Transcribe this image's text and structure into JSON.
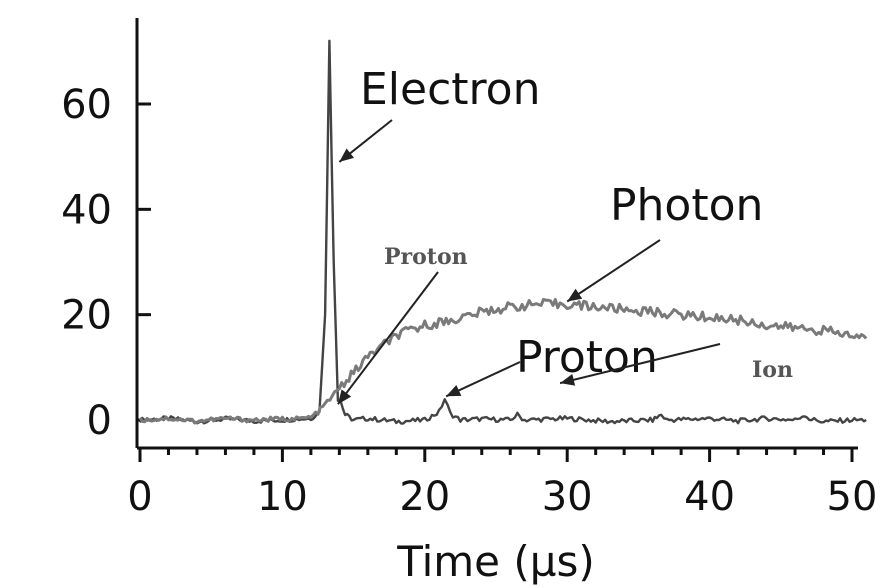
{
  "chart_data": {
    "type": "line",
    "xlabel": "Time (µs)",
    "ylabel": "",
    "title": "",
    "xlim": [
      0,
      51
    ],
    "ylim": [
      -3,
      78
    ],
    "xticks": [
      0,
      10,
      20,
      30,
      40,
      50
    ],
    "yticks": [
      0,
      20,
      40,
      60
    ],
    "xtick_labels": [
      "0",
      "10",
      "20",
      "30",
      "40",
      "50"
    ],
    "ytick_labels": [
      "0",
      "20",
      "40",
      "60"
    ],
    "grid": false,
    "colors": {
      "electron": "#444444",
      "photon": "#7a7a7a",
      "axis": "#111111"
    },
    "series": [
      {
        "key": "electron",
        "x": [
          0,
          2,
          4,
          6,
          8,
          10,
          11,
          12,
          12.6,
          13.0,
          13.3,
          13.6,
          13.9,
          14.1,
          14.4,
          15,
          16,
          18,
          20,
          21.0,
          21.4,
          21.8,
          22.5,
          24,
          26,
          26.5,
          27,
          30,
          33,
          36,
          36.6,
          37,
          40,
          42,
          44,
          46,
          46.7,
          47,
          48,
          50,
          51
        ],
        "y": [
          0,
          0.3,
          -0.3,
          0.2,
          -0.2,
          0,
          0.2,
          0.3,
          1.5,
          20,
          72,
          30,
          4,
          3.5,
          1,
          0,
          0.3,
          -0.3,
          0,
          1.5,
          4,
          1.2,
          0,
          0.2,
          0,
          1,
          0,
          0.3,
          -0.3,
          0,
          1,
          0,
          0.3,
          -0.2,
          0.3,
          0,
          1,
          0.2,
          -0.3,
          0,
          0
        ]
      },
      {
        "key": "photon",
        "x": [
          0,
          2,
          4,
          6,
          8,
          10,
          11,
          12,
          12.5,
          13,
          13.5,
          14,
          15,
          16,
          17,
          18,
          19,
          20,
          22,
          24,
          26,
          28,
          30,
          32,
          34,
          36,
          38,
          40,
          42,
          44,
          46,
          48,
          50,
          51
        ],
        "y": [
          0,
          0.3,
          -0.2,
          0.3,
          0,
          0.2,
          0.2,
          0.5,
          1.5,
          3,
          4.5,
          6,
          9,
          12,
          14,
          16,
          17,
          18,
          19,
          20.5,
          21.5,
          22,
          22,
          21.5,
          21,
          20.5,
          20,
          19.5,
          19,
          18,
          17.5,
          17,
          16,
          15.5
        ]
      }
    ],
    "annotations": [
      {
        "key": "electron",
        "text": "Electron",
        "arrow_to": [
          14.0,
          49
        ]
      },
      {
        "key": "photon",
        "text": "Photon",
        "arrow_to": [
          30.0,
          22.5
        ]
      },
      {
        "key": "proton_small",
        "text": "Proton",
        "arrow_to": [
          13.9,
          3
        ]
      },
      {
        "key": "proton_big",
        "text": "Proton",
        "arrow_to": [
          21.5,
          4.5
        ]
      },
      {
        "key": "ion",
        "text": "Ion",
        "arrow_to": [
          29.5,
          7
        ]
      }
    ]
  }
}
